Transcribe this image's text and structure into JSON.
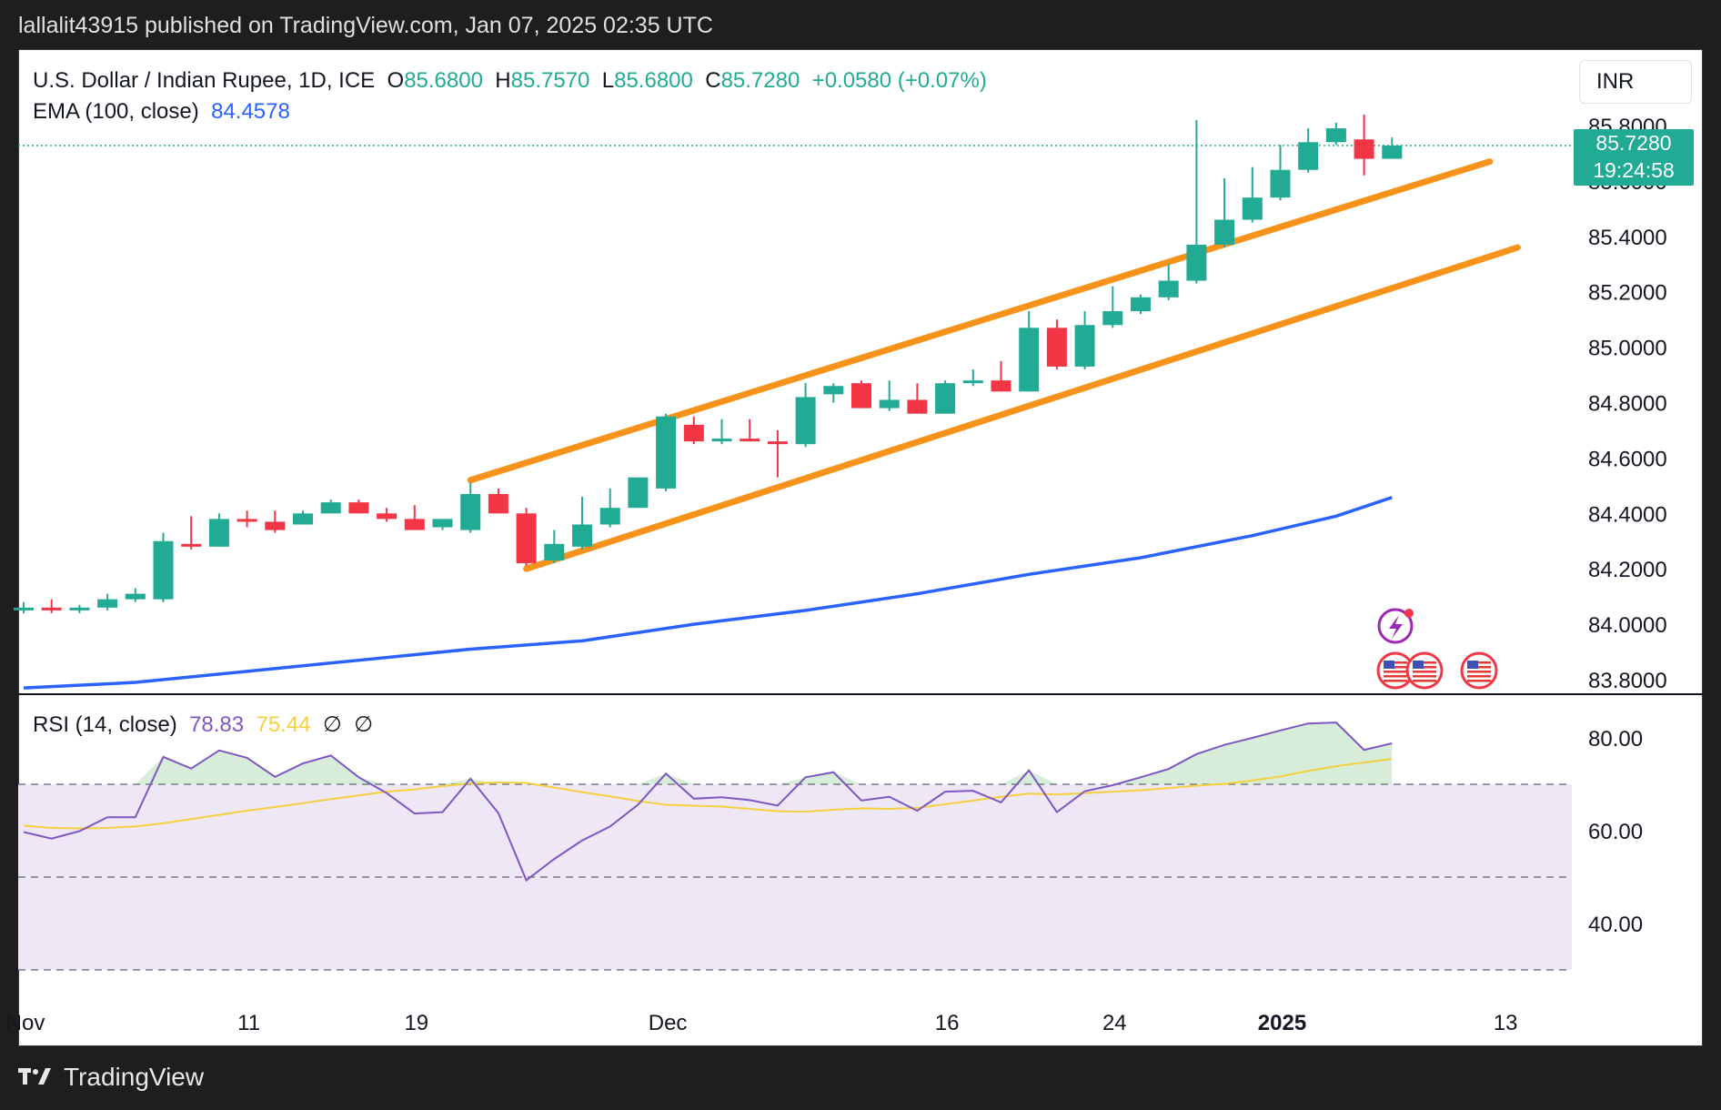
{
  "header": {
    "text": "lallalit43915 published on TradingView.com, Jan 07, 2025 02:35 UTC"
  },
  "legend": {
    "symbol": "U.S. Dollar / Indian Rupee, 1D, ICE",
    "o_label": "O",
    "o_value": "85.6800",
    "h_label": "H",
    "h_value": "85.7570",
    "l_label": "L",
    "l_value": "85.6800",
    "c_label": "C",
    "c_value": "85.7280",
    "change": "+0.0580 (+0.07%)",
    "ema_label": "EMA (100, close)",
    "ema_value": "84.4578"
  },
  "currency": "INR",
  "last_price": {
    "value": "85.7280",
    "countdown": "19:24:58"
  },
  "rsi_legend": {
    "label": "RSI (14, close)",
    "rsi": "78.83",
    "ma": "75.44",
    "sym1": "∅",
    "sym2": "∅"
  },
  "footer": {
    "brand": "TradingView"
  },
  "colors": {
    "up": "#22ab94",
    "down": "#f23645",
    "ema": "#2962ff",
    "channel": "#f7931a",
    "rsi": "#7e57c2",
    "rsi_ma": "#f4d03f",
    "rsi_band": "#ede7f6"
  },
  "chart_data": {
    "type": "candlestick",
    "price_axis": {
      "ylim": [
        83.8,
        85.95
      ],
      "ticks": [
        "85.8000",
        "85.6000",
        "85.4000",
        "85.2000",
        "85.0000",
        "84.8000",
        "84.6000",
        "84.4000",
        "84.2000",
        "84.0000",
        "83.8000"
      ]
    },
    "time_axis": {
      "labels": [
        "Nov",
        "11",
        "19",
        "Dec",
        "16",
        "24",
        "2025",
        "13"
      ],
      "label_bars": [
        0,
        8,
        14,
        23,
        33,
        39,
        45,
        53
      ]
    },
    "candles": [
      {
        "o": 84.05,
        "h": 84.08,
        "l": 84.04,
        "c": 84.06
      },
      {
        "o": 84.06,
        "h": 84.09,
        "l": 84.04,
        "c": 84.05
      },
      {
        "o": 84.05,
        "h": 84.07,
        "l": 84.04,
        "c": 84.06
      },
      {
        "o": 84.06,
        "h": 84.11,
        "l": 84.05,
        "c": 84.09
      },
      {
        "o": 84.09,
        "h": 84.13,
        "l": 84.08,
        "c": 84.11
      },
      {
        "o": 84.09,
        "h": 84.33,
        "l": 84.08,
        "c": 84.3
      },
      {
        "o": 84.29,
        "h": 84.39,
        "l": 84.27,
        "c": 84.28
      },
      {
        "o": 84.28,
        "h": 84.4,
        "l": 84.28,
        "c": 84.38
      },
      {
        "o": 84.38,
        "h": 84.41,
        "l": 84.35,
        "c": 84.37
      },
      {
        "o": 84.37,
        "h": 84.41,
        "l": 84.33,
        "c": 84.34
      },
      {
        "o": 84.36,
        "h": 84.41,
        "l": 84.36,
        "c": 84.4
      },
      {
        "o": 84.4,
        "h": 84.45,
        "l": 84.4,
        "c": 84.44
      },
      {
        "o": 84.44,
        "h": 84.45,
        "l": 84.4,
        "c": 84.4
      },
      {
        "o": 84.4,
        "h": 84.42,
        "l": 84.37,
        "c": 84.38
      },
      {
        "o": 84.38,
        "h": 84.43,
        "l": 84.34,
        "c": 84.34
      },
      {
        "o": 84.35,
        "h": 84.38,
        "l": 84.34,
        "c": 84.38
      },
      {
        "o": 84.34,
        "h": 84.51,
        "l": 84.33,
        "c": 84.47
      },
      {
        "o": 84.47,
        "h": 84.49,
        "l": 84.4,
        "c": 84.4
      },
      {
        "o": 84.4,
        "h": 84.42,
        "l": 84.21,
        "c": 84.22
      },
      {
        "o": 84.23,
        "h": 84.34,
        "l": 84.22,
        "c": 84.29
      },
      {
        "o": 84.28,
        "h": 84.46,
        "l": 84.27,
        "c": 84.36
      },
      {
        "o": 84.36,
        "h": 84.49,
        "l": 84.35,
        "c": 84.42
      },
      {
        "o": 84.42,
        "h": 84.52,
        "l": 84.42,
        "c": 84.53
      },
      {
        "o": 84.49,
        "h": 84.76,
        "l": 84.48,
        "c": 84.75
      },
      {
        "o": 84.72,
        "h": 84.75,
        "l": 84.65,
        "c": 84.66
      },
      {
        "o": 84.66,
        "h": 84.74,
        "l": 84.65,
        "c": 84.67
      },
      {
        "o": 84.67,
        "h": 84.74,
        "l": 84.66,
        "c": 84.66
      },
      {
        "o": 84.66,
        "h": 84.7,
        "l": 84.53,
        "c": 84.65
      },
      {
        "o": 84.65,
        "h": 84.87,
        "l": 84.64,
        "c": 84.82
      },
      {
        "o": 84.83,
        "h": 84.87,
        "l": 84.8,
        "c": 84.86
      },
      {
        "o": 84.87,
        "h": 84.88,
        "l": 84.78,
        "c": 84.78
      },
      {
        "o": 84.78,
        "h": 84.88,
        "l": 84.77,
        "c": 84.81
      },
      {
        "o": 84.81,
        "h": 84.87,
        "l": 84.76,
        "c": 84.76
      },
      {
        "o": 84.76,
        "h": 84.88,
        "l": 84.76,
        "c": 84.87
      },
      {
        "o": 84.87,
        "h": 84.92,
        "l": 84.86,
        "c": 84.88
      },
      {
        "o": 84.88,
        "h": 84.95,
        "l": 84.84,
        "c": 84.84
      },
      {
        "o": 84.84,
        "h": 85.13,
        "l": 84.84,
        "c": 85.07
      },
      {
        "o": 85.07,
        "h": 85.1,
        "l": 84.92,
        "c": 84.93
      },
      {
        "o": 84.93,
        "h": 85.13,
        "l": 84.92,
        "c": 85.08
      },
      {
        "o": 85.08,
        "h": 85.22,
        "l": 85.07,
        "c": 85.13
      },
      {
        "o": 85.13,
        "h": 85.19,
        "l": 85.12,
        "c": 85.18
      },
      {
        "o": 85.18,
        "h": 85.3,
        "l": 85.17,
        "c": 85.24
      },
      {
        "o": 85.24,
        "h": 85.82,
        "l": 85.23,
        "c": 85.37
      },
      {
        "o": 85.37,
        "h": 85.61,
        "l": 85.36,
        "c": 85.46
      },
      {
        "o": 85.46,
        "h": 85.65,
        "l": 85.45,
        "c": 85.54
      },
      {
        "o": 85.54,
        "h": 85.73,
        "l": 85.53,
        "c": 85.64
      },
      {
        "o": 85.64,
        "h": 85.79,
        "l": 85.63,
        "c": 85.74
      },
      {
        "o": 85.74,
        "h": 85.81,
        "l": 85.73,
        "c": 85.79
      },
      {
        "o": 85.75,
        "h": 85.84,
        "l": 85.62,
        "c": 85.68
      },
      {
        "o": 85.68,
        "h": 85.757,
        "l": 85.68,
        "c": 85.728
      }
    ],
    "ema100": [
      {
        "bar": 0,
        "v": 83.77
      },
      {
        "bar": 4,
        "v": 83.79
      },
      {
        "bar": 8,
        "v": 83.83
      },
      {
        "bar": 12,
        "v": 83.87
      },
      {
        "bar": 16,
        "v": 83.91
      },
      {
        "bar": 20,
        "v": 83.94
      },
      {
        "bar": 24,
        "v": 84.0
      },
      {
        "bar": 28,
        "v": 84.05
      },
      {
        "bar": 32,
        "v": 84.11
      },
      {
        "bar": 36,
        "v": 84.18
      },
      {
        "bar": 40,
        "v": 84.24
      },
      {
        "bar": 44,
        "v": 84.32
      },
      {
        "bar": 47,
        "v": 84.39
      },
      {
        "bar": 49,
        "v": 84.4578
      }
    ],
    "channel": {
      "upper": {
        "from": {
          "bar": 16,
          "v": 84.52
        },
        "to": {
          "bar": 52.5,
          "v": 85.67
        }
      },
      "lower": {
        "from": {
          "bar": 18,
          "v": 84.2
        },
        "to": {
          "bar": 53.5,
          "v": 85.36
        }
      }
    },
    "rsi": {
      "ylim": [
        30,
        84
      ],
      "ticks": [
        "80.00",
        "60.00",
        "40.00"
      ],
      "levels": [
        70,
        50,
        30
      ],
      "values": [
        59.7,
        58.3,
        59.9,
        62.9,
        62.9,
        75.9,
        73.4,
        77.3,
        75.7,
        71.6,
        74.5,
        76.2,
        71.5,
        68.1,
        63.7,
        64.0,
        71.2,
        63.8,
        49.3,
        53.9,
        57.9,
        60.9,
        65.6,
        72.3,
        66.9,
        67.2,
        66.6,
        65.4,
        71.5,
        72.6,
        66.5,
        67.3,
        64.3,
        68.4,
        68.6,
        66.1,
        73.0,
        64.0,
        68.5,
        69.8,
        71.5,
        73.3,
        76.5,
        78.5,
        80.0,
        81.6,
        83.1,
        83.3,
        77.4,
        78.83
      ],
      "ma": [
        61.1,
        60.6,
        60.5,
        60.6,
        60.9,
        61.6,
        62.5,
        63.4,
        64.3,
        65.1,
        65.9,
        66.8,
        67.6,
        68.4,
        68.9,
        69.6,
        70.2,
        70.4,
        70.3,
        69.3,
        68.3,
        67.4,
        66.4,
        65.6,
        65.4,
        65.2,
        64.7,
        64.2,
        64.1,
        64.5,
        64.8,
        64.7,
        64.9,
        65.7,
        66.5,
        67.3,
        68.0,
        67.8,
        68.1,
        68.4,
        68.7,
        69.2,
        69.7,
        70.1,
        70.8,
        71.7,
        72.9,
        73.9,
        74.7,
        75.44
      ]
    }
  }
}
